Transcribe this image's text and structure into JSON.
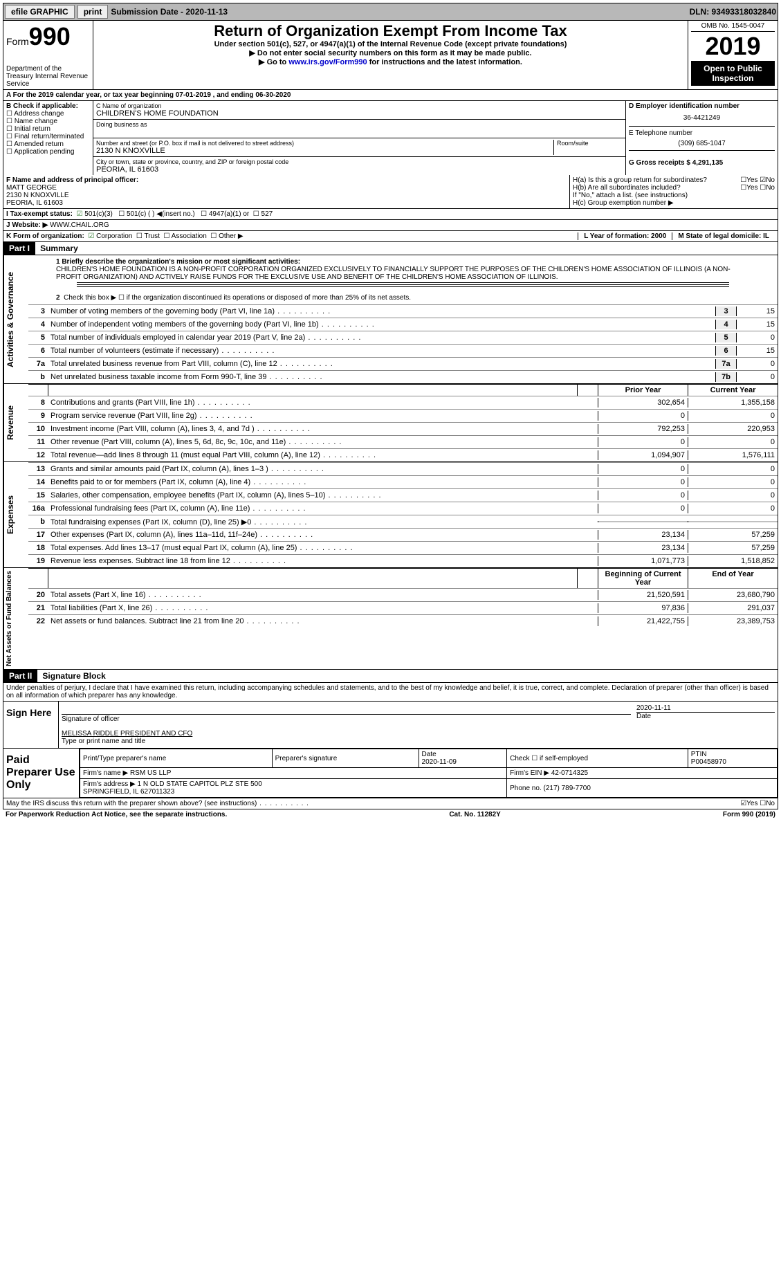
{
  "colors": {
    "topbar_bg": "#b8b8b8",
    "link": "#0000cc",
    "black": "#000000",
    "shade": "#c0c0c0",
    "check_green": "#2a7a2a"
  },
  "topbar": {
    "efile": "efile GRAPHIC",
    "print": "print",
    "sub_date_label": "Submission Date - 2020-11-13",
    "dln": "DLN: 93493318032840"
  },
  "header": {
    "form_label": "Form",
    "form_num": "990",
    "dept": "Department of the Treasury\nInternal Revenue Service",
    "title": "Return of Organization Exempt From Income Tax",
    "subtitle": "Under section 501(c), 527, or 4947(a)(1) of the Internal Revenue Code (except private foundations)",
    "note1": "▶ Do not enter social security numbers on this form as it may be made public.",
    "note2_pre": "▶ Go to ",
    "note2_link": "www.irs.gov/Form990",
    "note2_post": " for instructions and the latest information.",
    "omb": "OMB No. 1545-0047",
    "year": "2019",
    "open": "Open to Public Inspection"
  },
  "row_a": "A For the 2019 calendar year, or tax year beginning 07-01-2019    , and ending 06-30-2020",
  "box_b": {
    "label": "B Check if applicable:",
    "items": [
      "Address change",
      "Name change",
      "Initial return",
      "Final return/terminated",
      "Amended return",
      "Application pending"
    ]
  },
  "box_c": {
    "name_label": "C Name of organization",
    "name": "CHILDREN'S HOME FOUNDATION",
    "dba_label": "Doing business as",
    "addr_label": "Number and street (or P.O. box if mail is not delivered to street address)",
    "room_label": "Room/suite",
    "addr": "2130 N KNOXVILLE",
    "city_label": "City or town, state or province, country, and ZIP or foreign postal code",
    "city": "PEORIA, IL  61603"
  },
  "box_d": {
    "label": "D Employer identification number",
    "ein": "36-4421249"
  },
  "box_e": {
    "label": "E Telephone number",
    "phone": "(309) 685-1047"
  },
  "box_g": {
    "label": "G Gross receipts $ 4,291,135"
  },
  "box_f": {
    "label": "F Name and address of principal officer:",
    "name": "MATT GEORGE",
    "addr1": "2130 N KNOXVILLE",
    "addr2": "PEORIA, IL  61603"
  },
  "box_h": {
    "a": "H(a)  Is this a group return for subordinates?",
    "a_ans": "☐Yes  ☑No",
    "b": "H(b)  Are all subordinates included?",
    "b_ans": "☐Yes  ☐No",
    "b_note": "If \"No,\" attach a list. (see instructions)",
    "c": "H(c)  Group exemption number ▶"
  },
  "row_i": {
    "label": "I  Tax-exempt status:",
    "opts": [
      "501(c)(3)",
      "501(c) (  ) ◀(insert no.)",
      "4947(a)(1) or",
      "527"
    ]
  },
  "row_j": {
    "label": "J  Website: ▶",
    "url": "WWW.CHAIL.ORG"
  },
  "row_k": {
    "label": "K Form of organization:",
    "opts": [
      "Corporation",
      "Trust",
      "Association",
      "Other ▶"
    ],
    "l": "L Year of formation: 2000",
    "m": "M State of legal domicile: IL"
  },
  "part1": {
    "hdr": "Part I",
    "title": "Summary",
    "line1_label": "1  Briefly describe the organization's mission or most significant activities:",
    "mission": "CHILDREN'S HOME FOUNDATION IS A NON-PROFIT CORPORATION ORGANIZED EXCLUSIVELY TO FINANCIALLY SUPPORT THE PURPOSES OF THE CHILDREN'S HOME ASSOCIATION OF ILLINOIS (A NON-PROFIT ORGANIZATION) AND ACTIVELY RAISE FUNDS FOR THE EXCLUSIVE USE AND BENEFIT OF THE CHILDREN'S HOME ASSOCIATION OF ILLINOIS.",
    "line2": "Check this box ▶ ☐  if the organization discontinued its operations or disposed of more than 25% of its net assets."
  },
  "sections": [
    {
      "vlabel": "Activities & Governance",
      "hdr": null,
      "rows": [
        {
          "n": "3",
          "t": "Number of voting members of the governing body (Part VI, line 1a)",
          "box": "3",
          "a": "",
          "b": "15",
          "nocols": true
        },
        {
          "n": "4",
          "t": "Number of independent voting members of the governing body (Part VI, line 1b)",
          "box": "4",
          "a": "",
          "b": "15",
          "nocols": true
        },
        {
          "n": "5",
          "t": "Total number of individuals employed in calendar year 2019 (Part V, line 2a)",
          "box": "5",
          "a": "",
          "b": "0",
          "nocols": true
        },
        {
          "n": "6",
          "t": "Total number of volunteers (estimate if necessary)",
          "box": "6",
          "a": "",
          "b": "15",
          "nocols": true
        },
        {
          "n": "7a",
          "t": "Total unrelated business revenue from Part VIII, column (C), line 12",
          "box": "7a",
          "a": "",
          "b": "0",
          "nocols": true
        },
        {
          "n": "b",
          "t": "Net unrelated business taxable income from Form 990-T, line 39",
          "box": "7b",
          "a": "",
          "b": "0",
          "nocols": true
        }
      ]
    },
    {
      "vlabel": "Revenue",
      "hdr": {
        "py": "Prior Year",
        "cy": "Current Year"
      },
      "rows": [
        {
          "n": "8",
          "t": "Contributions and grants (Part VIII, line 1h)",
          "a": "302,654",
          "b": "1,355,158"
        },
        {
          "n": "9",
          "t": "Program service revenue (Part VIII, line 2g)",
          "a": "0",
          "b": "0"
        },
        {
          "n": "10",
          "t": "Investment income (Part VIII, column (A), lines 3, 4, and 7d )",
          "a": "792,253",
          "b": "220,953"
        },
        {
          "n": "11",
          "t": "Other revenue (Part VIII, column (A), lines 5, 6d, 8c, 9c, 10c, and 11e)",
          "a": "0",
          "b": "0"
        },
        {
          "n": "12",
          "t": "Total revenue—add lines 8 through 11 (must equal Part VIII, column (A), line 12)",
          "a": "1,094,907",
          "b": "1,576,111"
        }
      ]
    },
    {
      "vlabel": "Expenses",
      "rows": [
        {
          "n": "13",
          "t": "Grants and similar amounts paid (Part IX, column (A), lines 1–3 )",
          "a": "0",
          "b": "0"
        },
        {
          "n": "14",
          "t": "Benefits paid to or for members (Part IX, column (A), line 4)",
          "a": "0",
          "b": "0"
        },
        {
          "n": "15",
          "t": "Salaries, other compensation, employee benefits (Part IX, column (A), lines 5–10)",
          "a": "0",
          "b": "0"
        },
        {
          "n": "16a",
          "t": "Professional fundraising fees (Part IX, column (A), line 11e)",
          "a": "0",
          "b": "0"
        },
        {
          "n": "b",
          "t": "Total fundraising expenses (Part IX, column (D), line 25) ▶0",
          "a": "",
          "b": "",
          "shade": true
        },
        {
          "n": "17",
          "t": "Other expenses (Part IX, column (A), lines 11a–11d, 11f–24e)",
          "a": "23,134",
          "b": "57,259"
        },
        {
          "n": "18",
          "t": "Total expenses. Add lines 13–17 (must equal Part IX, column (A), line 25)",
          "a": "23,134",
          "b": "57,259"
        },
        {
          "n": "19",
          "t": "Revenue less expenses. Subtract line 18 from line 12",
          "a": "1,071,773",
          "b": "1,518,852"
        }
      ]
    },
    {
      "vlabel": "Net Assets or Fund Balances",
      "hdr": {
        "py": "Beginning of Current Year",
        "cy": "End of Year"
      },
      "rows": [
        {
          "n": "20",
          "t": "Total assets (Part X, line 16)",
          "a": "21,520,591",
          "b": "23,680,790"
        },
        {
          "n": "21",
          "t": "Total liabilities (Part X, line 26)",
          "a": "97,836",
          "b": "291,037"
        },
        {
          "n": "22",
          "t": "Net assets or fund balances. Subtract line 21 from line 20",
          "a": "21,422,755",
          "b": "23,389,753"
        }
      ]
    }
  ],
  "part2": {
    "hdr": "Part II",
    "title": "Signature Block",
    "decl": "Under penalties of perjury, I declare that I have examined this return, including accompanying schedules and statements, and to the best of my knowledge and belief, it is true, correct, and complete. Declaration of preparer (other than officer) is based on all information of which preparer has any knowledge."
  },
  "sign": {
    "left": "Sign Here",
    "sig_label": "Signature of officer",
    "date": "2020-11-11",
    "date_label": "Date",
    "name": "MELISSA RIDDLE  PRESIDENT AND CFO",
    "name_label": "Type or print name and title"
  },
  "prep": {
    "left": "Paid Preparer Use Only",
    "h1": "Print/Type preparer's name",
    "h2": "Preparer's signature",
    "h3_label": "Date",
    "h3": "2020-11-09",
    "h4": "Check ☐ if self-employed",
    "h5_label": "PTIN",
    "h5": "P00458970",
    "firm_name_label": "Firm's name   ▶",
    "firm_name": "RSM US LLP",
    "firm_ein_label": "Firm's EIN ▶",
    "firm_ein": "42-0714325",
    "firm_addr_label": "Firm's address ▶",
    "firm_addr": "1 N OLD STATE CAPITOL PLZ STE 500\nSPRINGFIELD, IL  627011323",
    "phone_label": "Phone no.",
    "phone": "(217) 789-7700"
  },
  "footer": {
    "discuss": "May the IRS discuss this return with the preparer shown above? (see instructions)",
    "discuss_ans": "☑Yes  ☐No",
    "pra": "For Paperwork Reduction Act Notice, see the separate instructions.",
    "cat": "Cat. No. 11282Y",
    "form": "Form 990 (2019)"
  }
}
